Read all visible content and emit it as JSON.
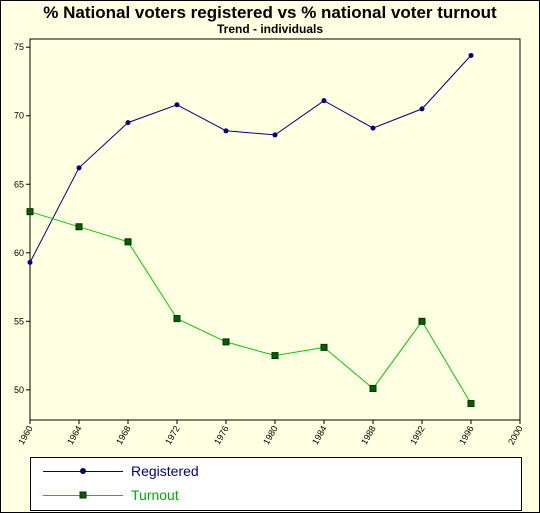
{
  "chart_data": {
    "type": "line",
    "title": "% National voters registered vs % national voter turnout",
    "subtitle": "Trend - individuals",
    "xlabel": "",
    "ylabel": "",
    "x": [
      1960,
      1964,
      1968,
      1972,
      1976,
      1980,
      1984,
      1988,
      1992,
      1996
    ],
    "xticks": [
      1960,
      1964,
      1968,
      1972,
      1976,
      1980,
      1984,
      1988,
      1992,
      1996,
      2000
    ],
    "yticks": [
      50,
      55,
      60,
      65,
      70,
      75
    ],
    "xlim": [
      1960,
      2000
    ],
    "ylim": [
      47.8,
      75.6
    ],
    "grid": false,
    "legend_position": "bottom",
    "series": [
      {
        "name": "Registered",
        "color": "#000080",
        "marker": "circle",
        "values": [
          59.3,
          66.2,
          69.5,
          70.8,
          68.9,
          68.6,
          71.1,
          69.1,
          70.5,
          74.4
        ]
      },
      {
        "name": "Turnout",
        "color": "#00cc00",
        "marker": "square",
        "values": [
          63.0,
          61.9,
          60.8,
          55.2,
          53.5,
          52.5,
          53.1,
          50.1,
          55.0,
          49.0
        ]
      }
    ]
  }
}
